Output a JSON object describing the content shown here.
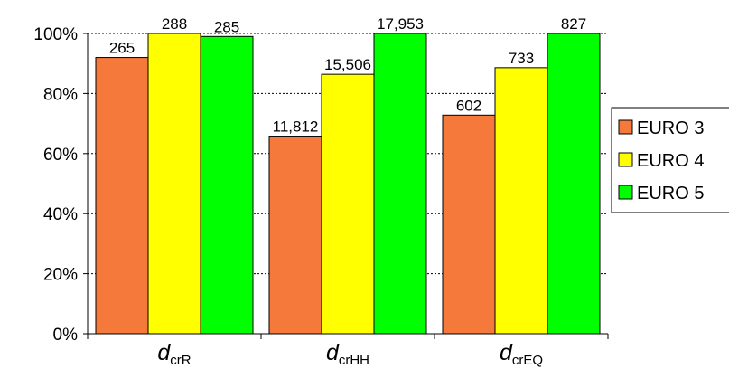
{
  "chart_data": {
    "type": "bar",
    "categories": [
      {
        "main": "d",
        "sub": "crR"
      },
      {
        "main": "d",
        "sub": "crHH"
      },
      {
        "main": "d",
        "sub": "crEQ"
      }
    ],
    "ylim": [
      0,
      100
    ],
    "y_ticks": [
      0,
      20,
      40,
      60,
      80,
      100
    ],
    "y_tick_labels": [
      "0%",
      "20%",
      "40%",
      "60%",
      "80%",
      "100%"
    ],
    "grid": "horizontal dashed",
    "legend_position": "right",
    "series": [
      {
        "name": "EURO 3",
        "color": "#f4793b",
        "values": [
          92.0,
          65.8,
          72.8
        ],
        "labels": [
          "265",
          "11,812",
          "602"
        ]
      },
      {
        "name": "EURO 4",
        "color": "#ffff00",
        "values": [
          100.0,
          86.4,
          88.6
        ],
        "labels": [
          "288",
          "15,506",
          "733"
        ]
      },
      {
        "name": "EURO 5",
        "color": "#00ff00",
        "values": [
          99.0,
          100.0,
          100.0
        ],
        "labels": [
          "285",
          "17,953",
          "827"
        ]
      }
    ]
  }
}
